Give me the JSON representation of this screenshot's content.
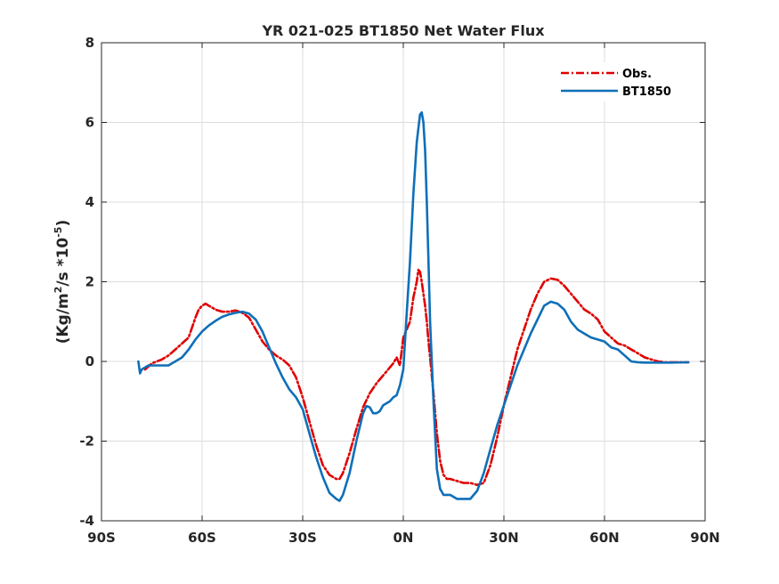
{
  "chart_data": {
    "type": "line",
    "title": "YR 021-025 BT1850  Net Water Flux",
    "xlabel": "",
    "ylabel_parts": {
      "pre": "(Kg/m",
      "sup1": "2",
      "mid": "/s *10",
      "sup2": "-5",
      "post": ")"
    },
    "xlim": [
      -90,
      90
    ],
    "ylim": [
      -4,
      8
    ],
    "xticks": [
      -90,
      -60,
      -30,
      0,
      30,
      60,
      90
    ],
    "xtick_labels": [
      "90S",
      "60S",
      "30S",
      "0N",
      "30N",
      "60N",
      "90N"
    ],
    "yticks": [
      -4,
      -2,
      0,
      2,
      4,
      6,
      8
    ],
    "ytick_labels": [
      "-4",
      "-2",
      "0",
      "2",
      "4",
      "6",
      "8"
    ],
    "grid": true,
    "legend_position": "top-right",
    "series": [
      {
        "name": "Obs.",
        "color": "#e00000",
        "style": "dash-dot",
        "x": [
          -77,
          -75,
          -72,
          -70,
          -68,
          -66,
          -64,
          -62,
          -61,
          -60,
          -59,
          -58,
          -56,
          -54,
          -52,
          -50,
          -48,
          -46,
          -44,
          -42,
          -40,
          -38,
          -36,
          -34,
          -32,
          -30,
          -28,
          -26,
          -24,
          -22,
          -20,
          -19,
          -18,
          -16,
          -14,
          -12,
          -10,
          -8,
          -6,
          -5,
          -4,
          -3,
          -2,
          -1,
          0,
          1,
          2,
          3,
          4,
          4.5,
          5,
          5.5,
          6,
          6.5,
          7,
          7.5,
          8,
          9,
          10,
          11,
          12,
          13,
          14,
          16,
          18,
          20,
          22,
          24,
          26,
          28,
          30,
          32,
          34,
          36,
          38,
          40,
          42,
          44,
          46,
          48,
          50,
          52,
          54,
          56,
          58,
          60,
          62,
          64,
          66,
          68,
          70,
          72,
          74,
          76,
          78,
          80,
          85
        ],
        "y": [
          -0.2,
          -0.05,
          0.05,
          0.15,
          0.3,
          0.45,
          0.6,
          1.1,
          1.3,
          1.4,
          1.45,
          1.4,
          1.3,
          1.25,
          1.25,
          1.28,
          1.22,
          1.1,
          0.8,
          0.5,
          0.3,
          0.15,
          0.05,
          -0.1,
          -0.4,
          -0.9,
          -1.5,
          -2.1,
          -2.6,
          -2.85,
          -2.95,
          -2.95,
          -2.8,
          -2.3,
          -1.7,
          -1.15,
          -0.8,
          -0.55,
          -0.35,
          -0.25,
          -0.15,
          -0.05,
          0.1,
          -0.1,
          0.6,
          0.8,
          1.0,
          1.6,
          2.0,
          2.3,
          2.25,
          2.0,
          1.7,
          1.4,
          1.0,
          0.5,
          0.1,
          -0.8,
          -1.8,
          -2.5,
          -2.85,
          -2.95,
          -2.95,
          -3.0,
          -3.05,
          -3.05,
          -3.1,
          -3.05,
          -2.6,
          -1.9,
          -1.1,
          -0.4,
          0.3,
          0.8,
          1.3,
          1.7,
          2.0,
          2.08,
          2.05,
          1.9,
          1.7,
          1.5,
          1.3,
          1.2,
          1.05,
          0.75,
          0.6,
          0.45,
          0.4,
          0.3,
          0.2,
          0.1,
          0.05,
          0.0,
          -0.02,
          -0.02,
          -0.02
        ]
      },
      {
        "name": "BT1850",
        "color": "#0e6fb8",
        "style": "solid",
        "x": [
          -79,
          -78.5,
          -78,
          -77,
          -76,
          -75,
          -74,
          -72,
          -70,
          -69,
          -68,
          -66,
          -64,
          -62,
          -60,
          -58,
          -56,
          -54,
          -52,
          -50,
          -48,
          -46,
          -44,
          -42,
          -40,
          -38,
          -36,
          -34,
          -32,
          -30,
          -28,
          -26,
          -24,
          -22,
          -20,
          -19,
          -18,
          -16,
          -14,
          -12,
          -11,
          -10,
          -9,
          -8,
          -7,
          -6,
          -5,
          -4,
          -3,
          -2,
          -1,
          0,
          1,
          2,
          3,
          4,
          5,
          5.5,
          6,
          6.5,
          7,
          7.5,
          8,
          9,
          10,
          11,
          12,
          13,
          14,
          16,
          18,
          20,
          22,
          24,
          26,
          28,
          30,
          32,
          34,
          36,
          38,
          40,
          42,
          44,
          46,
          48,
          50,
          52,
          54,
          56,
          58,
          60,
          62,
          64,
          66,
          68,
          70,
          72,
          75,
          80,
          85
        ],
        "y": [
          0.0,
          -0.3,
          -0.2,
          -0.15,
          -0.1,
          -0.1,
          -0.1,
          -0.1,
          -0.1,
          -0.05,
          0.0,
          0.1,
          0.3,
          0.55,
          0.75,
          0.9,
          1.02,
          1.12,
          1.18,
          1.22,
          1.25,
          1.2,
          1.05,
          0.75,
          0.35,
          -0.05,
          -0.4,
          -0.7,
          -0.9,
          -1.2,
          -1.8,
          -2.4,
          -2.9,
          -3.3,
          -3.45,
          -3.5,
          -3.35,
          -2.8,
          -2.0,
          -1.3,
          -1.12,
          -1.15,
          -1.3,
          -1.3,
          -1.25,
          -1.1,
          -1.05,
          -1.0,
          -0.9,
          -0.85,
          -0.6,
          -0.2,
          1.2,
          2.5,
          4.2,
          5.5,
          6.2,
          6.25,
          6.0,
          5.3,
          4.0,
          2.5,
          1.0,
          -1.0,
          -2.7,
          -3.2,
          -3.35,
          -3.35,
          -3.35,
          -3.45,
          -3.45,
          -3.45,
          -3.25,
          -2.8,
          -2.2,
          -1.6,
          -1.1,
          -0.6,
          -0.1,
          0.3,
          0.7,
          1.05,
          1.4,
          1.5,
          1.45,
          1.3,
          1.0,
          0.8,
          0.7,
          0.6,
          0.55,
          0.5,
          0.35,
          0.3,
          0.15,
          0.0,
          -0.02,
          -0.03,
          -0.03,
          -0.03,
          -0.02
        ]
      }
    ]
  }
}
